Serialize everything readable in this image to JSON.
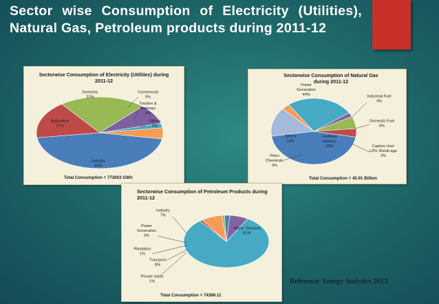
{
  "slide": {
    "title": "Sector wise Consumption of Electricity (Utilities), Natural Gas, Petroleum products during 2011-12",
    "reference": "Reference: Energy Statistics 2013"
  },
  "colors": {
    "accent_box": "#c8302a",
    "panel_bg": "#f4f0dc"
  },
  "chart_data": [
    {
      "type": "pie",
      "title": "Sectorwise Consumption of Electricity (Utilities) during 2011-12",
      "title_lines": [
        "Sectorwise Consumption of Electricity (Utilities) during",
        "2011-12"
      ],
      "total": "Total Consumption = 772603 GWh",
      "start_angle": 10,
      "slices": [
        {
          "label": [
            "Industry",
            "45%"
          ],
          "value": 45,
          "color": "#4a7ebb"
        },
        {
          "label": [
            "Agriculture",
            "17%"
          ],
          "value": 17,
          "color": "#be4b48"
        },
        {
          "label": [
            "Domestic",
            "22%"
          ],
          "value": 22,
          "color": "#98b954"
        },
        {
          "label": [
            "Commercial",
            "9%"
          ],
          "value": 9,
          "color": "#7d60a0"
        },
        {
          "label": [
            "Traction &",
            "Railways",
            "2%"
          ],
          "value": 2,
          "color": "#46aac4"
        },
        {
          "label": [
            "Others",
            "5%"
          ],
          "value": 5,
          "color": "#f59d56"
        }
      ]
    },
    {
      "type": "pie",
      "title": "Sectorwise Consumption of Natural Gas during 2011-12",
      "title_lines": [
        "Sectorwise Consumption of Natural Gas",
        "during 2011-12"
      ],
      "total": "Total Consumption = 45.91 Billion",
      "start_angle": 10,
      "slices": [
        {
          "label": [
            "Power",
            "Generation",
            "44%"
          ],
          "value": 44,
          "color": "#4a7ebb"
        },
        {
          "label": [
            "Others",
            "14%"
          ],
          "value": 14,
          "color": "#a5b9dd"
        },
        {
          "label": [
            "Petro",
            "Chemicals",
            "3%"
          ],
          "value": 3,
          "color": "#f59d56"
        },
        {
          "label": [
            "Fertilizer",
            "Industry",
            "25%"
          ],
          "value": 25,
          "color": "#46aac4"
        },
        {
          "label": [
            "Captive Use/",
            "LPG Shrink-age",
            "2%"
          ],
          "value": 2,
          "color": "#7d60a0"
        },
        {
          "label": [
            "Domestic Fuel",
            "6%"
          ],
          "value": 6,
          "color": "#98b954"
        },
        {
          "label": [
            "Industrial Fuel",
            "4%"
          ],
          "value": 4,
          "color": "#be4b48"
        }
      ]
    },
    {
      "type": "pie",
      "title": "Sectorwise Consumption of Petroleum Products during 2011-12",
      "title_lines": [
        "Sectorwise Consumption of Petroleum Products during",
        "2011-12"
      ],
      "total": "Total Consumption = 74389.11",
      "start_angle": -60,
      "slices": [
        {
          "label": [
            "Misce. Services",
            "81%"
          ],
          "value": 81,
          "color": "#46aac4"
        },
        {
          "label": [
            "Private Sales",
            "1%"
          ],
          "value": 1,
          "color": "#be4b48"
        },
        {
          "label": [
            "Transport",
            "8%"
          ],
          "value": 8,
          "color": "#f59d56"
        },
        {
          "label": [
            "Plantation",
            "1%"
          ],
          "value": 1,
          "color": "#98b954"
        },
        {
          "label": [
            "Power",
            "Generation",
            "2%"
          ],
          "value": 2,
          "color": "#4a7ebb"
        },
        {
          "label": [
            "Industry",
            "7%"
          ],
          "value": 7,
          "color": "#8064a2"
        }
      ]
    }
  ]
}
